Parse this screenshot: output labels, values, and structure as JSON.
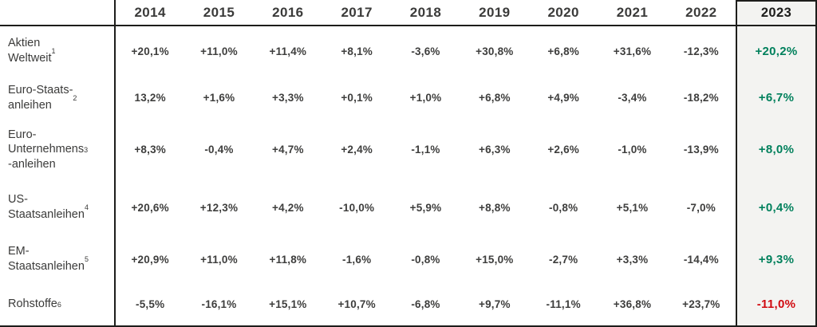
{
  "chart_data": {
    "type": "table",
    "categories": [
      "2014",
      "2015",
      "2016",
      "2017",
      "2018",
      "2019",
      "2020",
      "2021",
      "2022",
      "2023"
    ],
    "highlight_column": "2023",
    "series": [
      {
        "name": "Aktien Weltweit",
        "label_lines": [
          "Aktien",
          "Weltweit"
        ],
        "footnote": "1",
        "footnote_own_line": false,
        "values": [
          "+20,1%",
          "+11,0%",
          "+11,4%",
          "+8,1%",
          "-3,6%",
          "+30,8%",
          "+6,8%",
          "+31,6%",
          "-12,3%",
          "+20,2%"
        ],
        "value_2023_trend": "positive"
      },
      {
        "name": "Euro-Staatsanleihen",
        "label_lines": [
          "Euro-Staats-",
          "anleihen"
        ],
        "footnote": "2",
        "footnote_own_line": false,
        "values": [
          "13,2%",
          "+1,6%",
          "+3,3%",
          "+0,1%",
          "+1,0%",
          "+6,8%",
          "+4,9%",
          "-3,4%",
          "-18,2%",
          "+6,7%"
        ],
        "value_2023_trend": "positive"
      },
      {
        "name": "Euro-Unternehmensanleihen",
        "label_lines": [
          "Euro-",
          "Unternehmens",
          "-anleihen"
        ],
        "footnote": "3",
        "footnote_own_line": false,
        "values": [
          "+8,3%",
          "-0,4%",
          "+4,7%",
          "+2,4%",
          "-1,1%",
          "+6,3%",
          "+2,6%",
          "-1,0%",
          "-13,9%",
          "+8,0%"
        ],
        "value_2023_trend": "positive"
      },
      {
        "name": "US-Staatsanleihen",
        "label_lines": [
          "US-",
          "Staatsanleihen"
        ],
        "footnote": "4",
        "footnote_own_line": true,
        "values": [
          "+20,6%",
          "+12,3%",
          "+4,2%",
          "-10,0%",
          "+5,9%",
          "+8,8%",
          "-0,8%",
          "+5,1%",
          "-7,0%",
          "+0,4%"
        ],
        "value_2023_trend": "positive"
      },
      {
        "name": "EM-Staatsanleihen",
        "label_lines": [
          "EM-",
          "Staatsanleihen"
        ],
        "footnote": "5",
        "footnote_own_line": true,
        "values": [
          "+20,9%",
          "+11,0%",
          "+11,8%",
          "-1,6%",
          "-0,8%",
          "+15,0%",
          "-2,7%",
          "+3,3%",
          "-14,4%",
          "+9,3%"
        ],
        "value_2023_trend": "positive"
      },
      {
        "name": "Rohstoffe",
        "label_lines": [
          "Rohstoffe"
        ],
        "footnote": "6",
        "footnote_own_line": false,
        "values": [
          "-5,5%",
          "-16,1%",
          "+15,1%",
          "+10,7%",
          "-6,8%",
          "+9,7%",
          "-11,1%",
          "+36,8%",
          "+23,7%",
          "-11,0%"
        ],
        "value_2023_trend": "negative"
      }
    ]
  },
  "colors": {
    "line": "#1d1d1b",
    "header_text": "#3b3b3a",
    "label_text": "#3b3b3a",
    "value_text": "#3e3e3d",
    "positive_2023": "#00805c",
    "negative_2023": "#d10a10",
    "highlight_bg": "#f3f3f1"
  }
}
